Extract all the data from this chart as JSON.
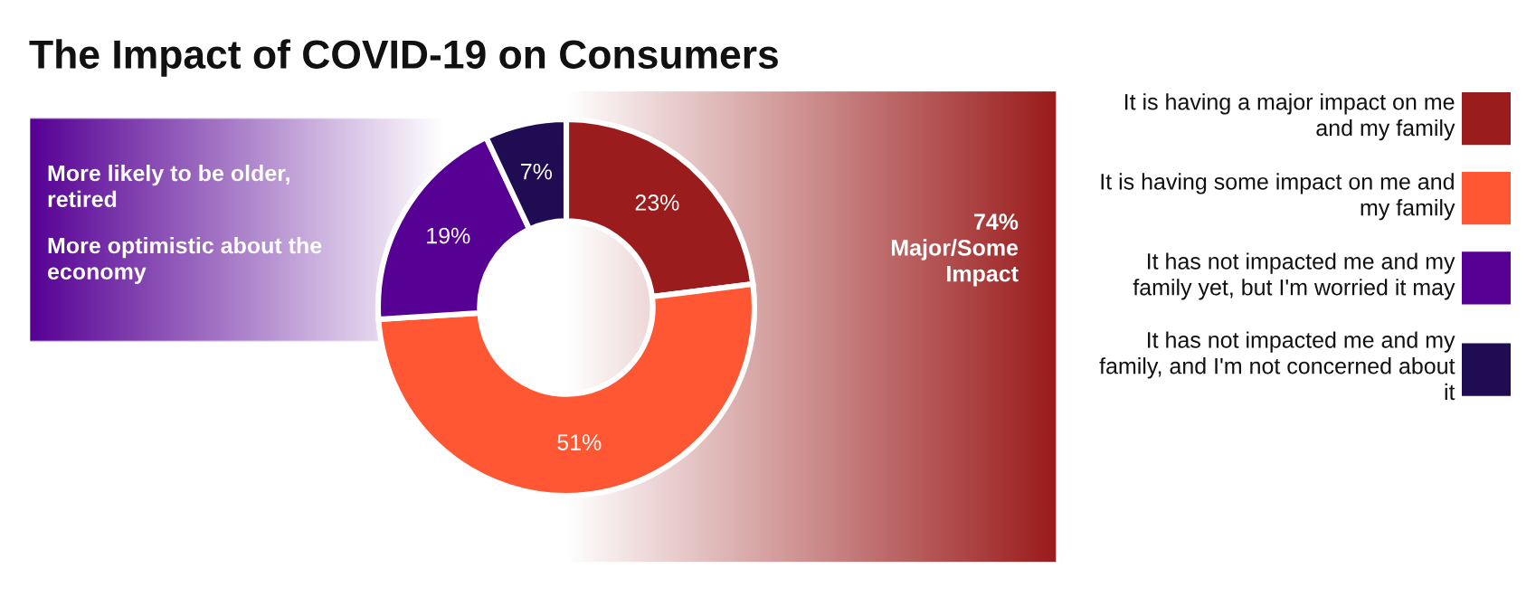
{
  "chart_data": {
    "type": "donut",
    "title": "The Impact of COVID-19 on Consumers",
    "categories": [
      "It is having a major impact on me and my family",
      "It is having some impact on me and my family",
      "It has not impacted me and my family yet, but I'm worried it may",
      "It has not impacted me and my family, and I'm not concerned about it"
    ],
    "values": [
      23,
      51,
      19,
      7
    ],
    "colors": [
      "#9b1c1c",
      "#ff5733",
      "#560094",
      "#200c52"
    ],
    "value_labels": [
      "23%",
      "51%",
      "19%",
      "7%"
    ],
    "annotations": [
      "74%\nMajor/Some\nImpact",
      "More likely to be older,\nretired",
      "More optimistic about the\neconomy"
    ],
    "legend": "right"
  }
}
